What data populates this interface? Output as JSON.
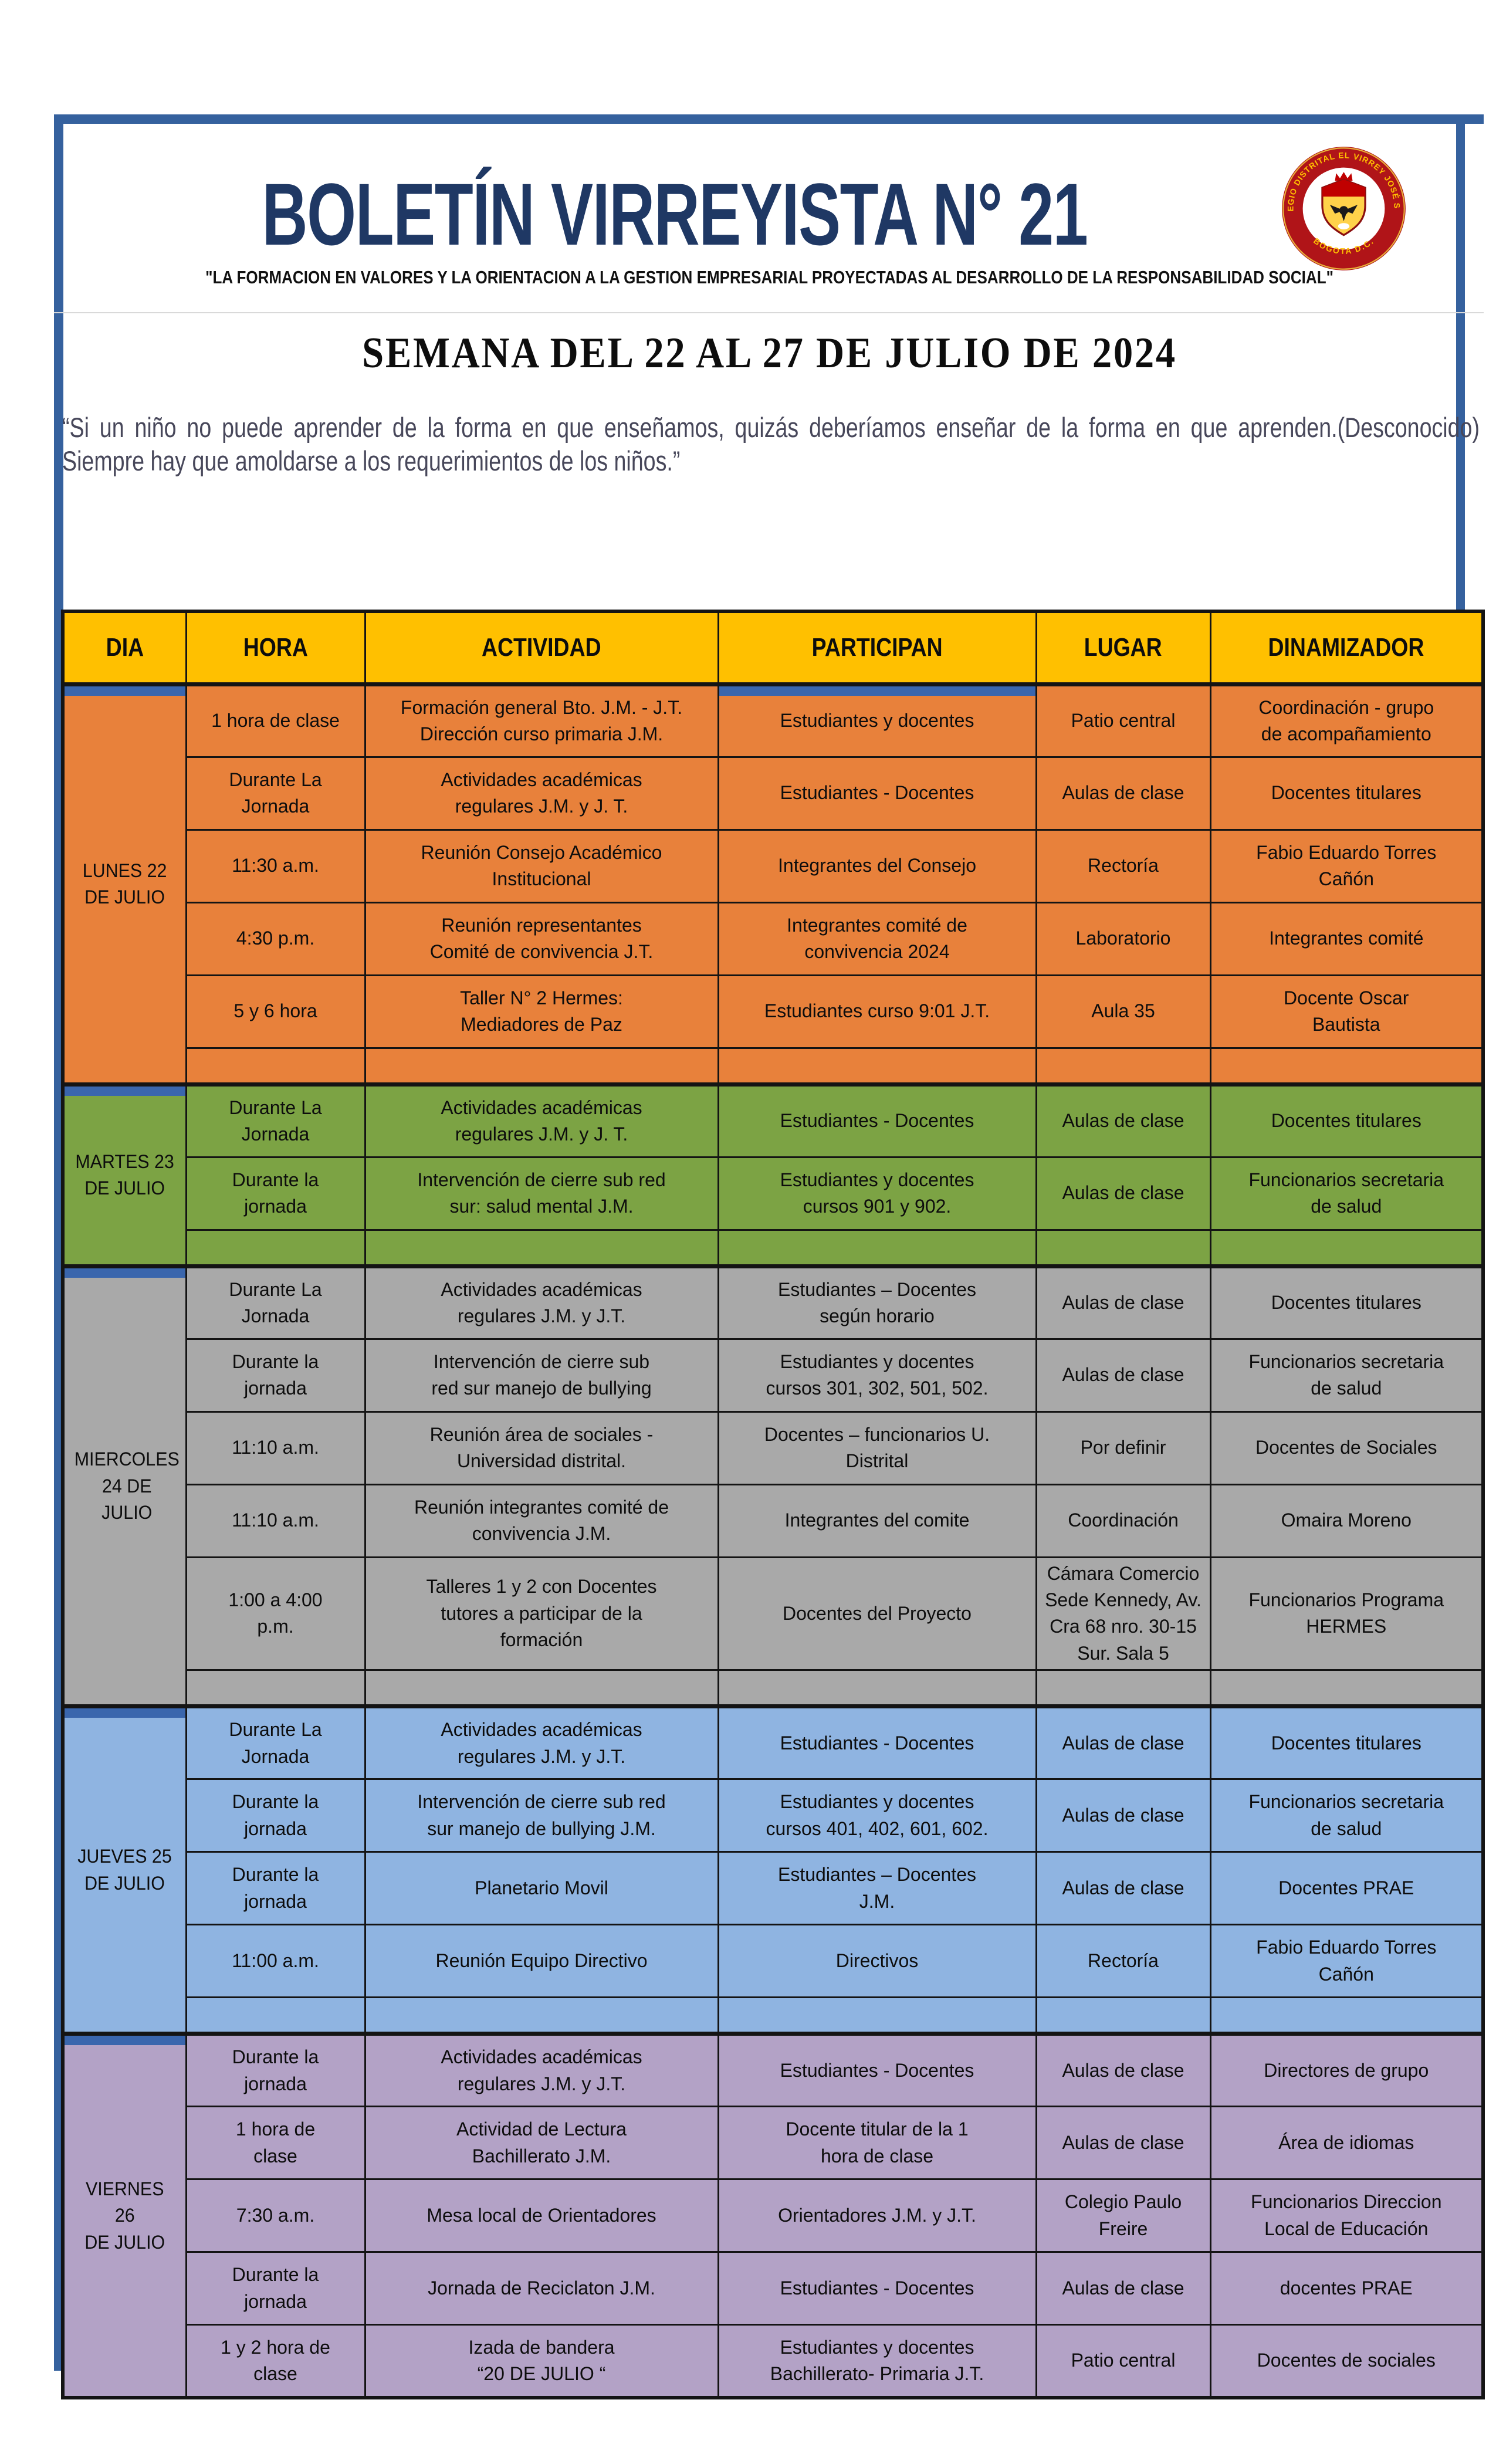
{
  "page": {
    "title": "BOLETÍN VIRREYISTA N° 21",
    "motto": "\"LA  FORMACION EN VALORES Y LA ORIENTACION A LA GESTION EMPRESARIAL PROYECTADAS AL DESARROLLO DE LA RESPONSABILIDAD SOCIAL\"",
    "week_heading": "SEMANA DEL 22 AL 27 DE JULIO DE 2024",
    "quote": "“Si un niño no puede aprender de la forma en que enseñamos, quizás deberíamos enseñar de la forma en que aprenden. Siempre hay que amoldarse a los requerimientos de los niños.”",
    "quote_author": "(Desconocido)"
  },
  "logo": {
    "ring_text_top": "COLEGIO DISTRITAL EL VIRREY JOSÉ SOLÍS",
    "ring_text_bottom": "BOGOTA D.C."
  },
  "colors": {
    "frame_blue": "#35619e",
    "accent_blue": "#3a66ad",
    "header_yellow": "#ffc000",
    "title_navy": "#1f3864",
    "lunes_orange": "#e8813b",
    "martes_green": "#7ca344",
    "miercoles_gray": "#a9a9a9",
    "jueves_blue": "#8fb4e1",
    "viernes_purple": "#b3a2c6"
  },
  "table": {
    "headers": [
      "DIA",
      "HORA",
      "ACTIVIDAD",
      "PARTICIPAN",
      "LUGAR",
      "DINAMIZADOR"
    ],
    "days": [
      {
        "name": "LUNES 22\nDE JULIO",
        "color": "#e8813b",
        "trailing_empty": true,
        "rows": [
          {
            "hora": "1 hora de clase",
            "actividad": "Formación general Bto. J.M. - J.T.\nDirección curso primaria J.M.",
            "participan": "Estudiantes y docentes",
            "lugar": "Patio central",
            "dinamizador": "Coordinación  -  grupo\nde acompañamiento"
          },
          {
            "hora": "Durante La\nJornada",
            "actividad": "Actividades académicas\nregulares J.M. y J. T.",
            "participan": "Estudiantes - Docentes",
            "lugar": "Aulas de clase",
            "dinamizador": "Docentes titulares"
          },
          {
            "hora": "11:30 a.m.",
            "actividad": "Reunión Consejo Académico\nInstitucional",
            "participan": "Integrantes del Consejo",
            "lugar": "Rectoría",
            "dinamizador": "Fabio Eduardo Torres\nCañón"
          },
          {
            "hora": "4:30 p.m.",
            "actividad": "Reunión representantes\nComité de convivencia J.T.",
            "participan": "Integrantes comité de\nconvivencia 2024",
            "lugar": "Laboratorio",
            "dinamizador": "Integrantes comité"
          },
          {
            "hora": "5 y 6 hora",
            "actividad": "Taller N° 2 Hermes:\nMediadores de Paz",
            "participan": "Estudiantes curso 9:01 J.T.",
            "lugar": "Aula 35",
            "dinamizador": "Docente Oscar\nBautista"
          }
        ]
      },
      {
        "name": "MARTES 23\nDE JULIO",
        "color": "#7ca344",
        "trailing_empty": true,
        "rows": [
          {
            "hora": "Durante La\nJornada",
            "actividad": "Actividades académicas\nregulares J.M. y J. T.",
            "participan": "Estudiantes - Docentes",
            "lugar": "Aulas de clase",
            "dinamizador": "Docentes titulares"
          },
          {
            "hora": "Durante la\njornada",
            "actividad": "Intervención de cierre sub red\nsur: salud mental J.M.",
            "participan": "Estudiantes y docentes\ncursos 901 y 902.",
            "lugar": "Aulas de clase",
            "dinamizador": "Funcionarios secretaria\nde salud"
          }
        ]
      },
      {
        "name": "MIERCOLES\n24 DE\nJULIO",
        "color": "#a9a9a9",
        "trailing_empty": true,
        "rows": [
          {
            "hora": "Durante La\nJornada",
            "actividad": "Actividades académicas\nregulares J.M. y J.T.",
            "participan": "Estudiantes – Docentes\nsegún horario",
            "lugar": "Aulas de clase",
            "dinamizador": "Docentes titulares"
          },
          {
            "hora": "Durante la\njornada",
            "actividad": "Intervención de cierre sub\nred sur manejo de bullying",
            "participan": "Estudiantes y docentes\ncursos 301, 302, 501, 502.",
            "lugar": "Aulas de clase",
            "dinamizador": "Funcionarios secretaria\nde salud"
          },
          {
            "hora": "11:10 a.m.",
            "actividad": "Reunión área de sociales -\nUniversidad distrital.",
            "participan": "Docentes – funcionarios U.\nDistrital",
            "lugar": "Por definir",
            "dinamizador": "Docentes de Sociales"
          },
          {
            "hora": "11:10 a.m.",
            "actividad": "Reunión integrantes comité de\nconvivencia J.M.",
            "participan": "Integrantes del comite",
            "lugar": "Coordinación",
            "dinamizador": "Omaira Moreno"
          },
          {
            "hora": "1:00 a 4:00\np.m.",
            "actividad": "Talleres 1 y 2 con Docentes\ntutores a participar de la\nformación",
            "participan": "Docentes del Proyecto",
            "lugar": "Cámara Comercio\nSede Kennedy, Av.\nCra 68 nro. 30-15\nSur. Sala 5",
            "dinamizador": "Funcionarios Programa\nHERMES"
          }
        ]
      },
      {
        "name": "JUEVES 25\nDE JULIO",
        "color": "#8fb4e1",
        "trailing_empty": true,
        "rows": [
          {
            "hora": "Durante La\nJornada",
            "actividad": "Actividades académicas\nregulares J.M. y J.T.",
            "participan": "Estudiantes - Docentes",
            "lugar": "Aulas de clase",
            "dinamizador": "Docentes titulares"
          },
          {
            "hora": "Durante la\njornada",
            "actividad": "Intervención de cierre sub red\nsur manejo de bullying  J.M.",
            "participan": "Estudiantes y docentes\ncursos 401, 402, 601, 602.",
            "lugar": "Aulas de clase",
            "dinamizador": "Funcionarios secretaria\nde salud"
          },
          {
            "hora": "Durante la\njornada",
            "actividad": "Planetario Movil",
            "participan": "Estudiantes – Docentes\nJ.M.",
            "lugar": "Aulas de clase",
            "dinamizador": "Docentes PRAE"
          },
          {
            "hora": "11:00 a.m.",
            "actividad": "Reunión Equipo Directivo",
            "participan": "Directivos",
            "lugar": "Rectoría",
            "dinamizador": "Fabio Eduardo Torres\nCañón"
          }
        ]
      },
      {
        "name": "VIERNES 26\nDE JULIO",
        "color": "#b3a2c6",
        "trailing_empty": false,
        "rows": [
          {
            "hora": "Durante la\njornada",
            "actividad": "Actividades académicas\nregulares J.M. y J.T.",
            "participan": "Estudiantes  - Docentes",
            "lugar": "Aulas de clase",
            "dinamizador": "Directores de grupo"
          },
          {
            "hora": "1 hora de\nclase",
            "actividad": "Actividad de Lectura\nBachillerato J.M.",
            "participan": "Docente titular de la 1\nhora de clase",
            "lugar": "Aulas de clase",
            "dinamizador": "Área de idiomas"
          },
          {
            "hora": "7:30 a.m.",
            "actividad": "Mesa local de Orientadores",
            "participan": "Orientadores J.M. y J.T.",
            "lugar": "Colegio Paulo\nFreire",
            "dinamizador": "Funcionarios Direccion\nLocal de Educación"
          },
          {
            "hora": "Durante la\njornada",
            "actividad": "Jornada de Reciclaton J.M.",
            "participan": "Estudiantes  - Docentes",
            "lugar": "Aulas de clase",
            "dinamizador": "docentes PRAE"
          },
          {
            "hora": "1 y 2 hora de\nclase",
            "actividad": "Izada de bandera\n“20 DE JULIO “",
            "participan": "Estudiantes y docentes\nBachillerato- Primaria J.T.",
            "lugar": "Patio central",
            "dinamizador": "Docentes de sociales"
          }
        ]
      }
    ]
  }
}
